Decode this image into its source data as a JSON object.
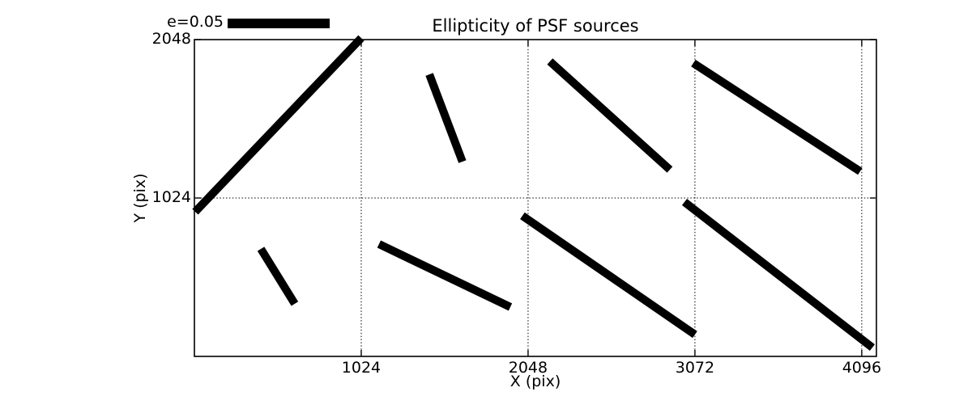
{
  "chart_data": {
    "type": "line",
    "subtype": "psf-ellipticity-whisker-plot",
    "title": "Ellipticity of PSF sources",
    "xlabel": "X (pix)",
    "ylabel": "Y (pix)",
    "xlim": [
      0,
      4186
    ],
    "ylim": [
      0,
      2048
    ],
    "xticks": [
      1024,
      2048,
      3072,
      4096
    ],
    "yticks": [
      1024,
      2048
    ],
    "grid": {
      "style": "dotted",
      "color": "#000000",
      "x_lines": [
        1024,
        2048,
        3072,
        4096
      ],
      "y_lines": [
        1024,
        2048
      ]
    },
    "legend": {
      "label": "e=0.05",
      "scale_e": 0.05,
      "position": "above-axes-upper-left"
    },
    "whisker_color": "#000000",
    "background_color": "#ffffff",
    "whiskers": [
      {
        "x1": 5,
        "y1": 935,
        "x2": 1024,
        "y2": 2058,
        "e_approx": 0.119
      },
      {
        "x1": 1442,
        "y1": 1823,
        "x2": 1645,
        "y2": 1259,
        "e_approx": 0.046
      },
      {
        "x1": 2182,
        "y1": 1907,
        "x2": 2918,
        "y2": 1207,
        "e_approx": 0.08
      },
      {
        "x1": 3062,
        "y1": 1896,
        "x2": 4086,
        "y2": 1196,
        "e_approx": 0.098
      },
      {
        "x1": 408,
        "y1": 695,
        "x2": 616,
        "y2": 340,
        "e_approx": 0.032
      },
      {
        "x1": 1133,
        "y1": 726,
        "x2": 1939,
        "y2": 319,
        "e_approx": 0.072
      },
      {
        "x1": 2013,
        "y1": 909,
        "x2": 3072,
        "y2": 141,
        "e_approx": 0.104
      },
      {
        "x1": 3008,
        "y1": 998,
        "x2": 4161,
        "y2": 57,
        "e_approx": 0.117
      }
    ]
  }
}
